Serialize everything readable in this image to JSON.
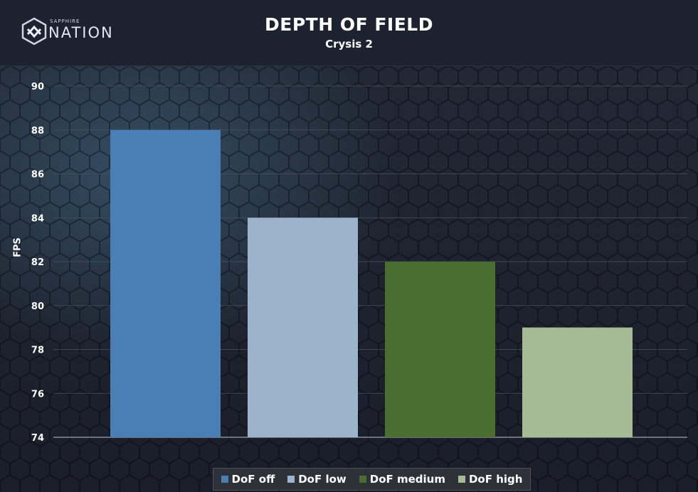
{
  "header": {
    "logo_brand_top": "SAPPHIRE",
    "logo_brand_main": "NATION",
    "title": "DEPTH OF FIELD",
    "subtitle": "Crysis 2"
  },
  "colors": {
    "dof_off": "#4a7fb5",
    "dof_low": "#9db3cb",
    "dof_medium": "#4a6e2f",
    "dof_high": "#a5bb96"
  },
  "chart_data": {
    "type": "bar",
    "title": "DEPTH OF FIELD",
    "subtitle": "Crysis 2",
    "xlabel": "",
    "ylabel": "FPS",
    "ylim": [
      74,
      90
    ],
    "yticks": [
      74,
      76,
      78,
      80,
      82,
      84,
      86,
      88,
      90
    ],
    "grid": true,
    "legend_position": "bottom",
    "series": [
      {
        "name": "DoF off",
        "values": [
          88
        ],
        "color": "#4a7fb5"
      },
      {
        "name": "DoF low",
        "values": [
          84
        ],
        "color": "#9db3cb"
      },
      {
        "name": "DoF medium",
        "values": [
          82
        ],
        "color": "#4a6e2f"
      },
      {
        "name": "DoF high",
        "values": [
          79
        ],
        "color": "#a5bb96"
      }
    ]
  }
}
